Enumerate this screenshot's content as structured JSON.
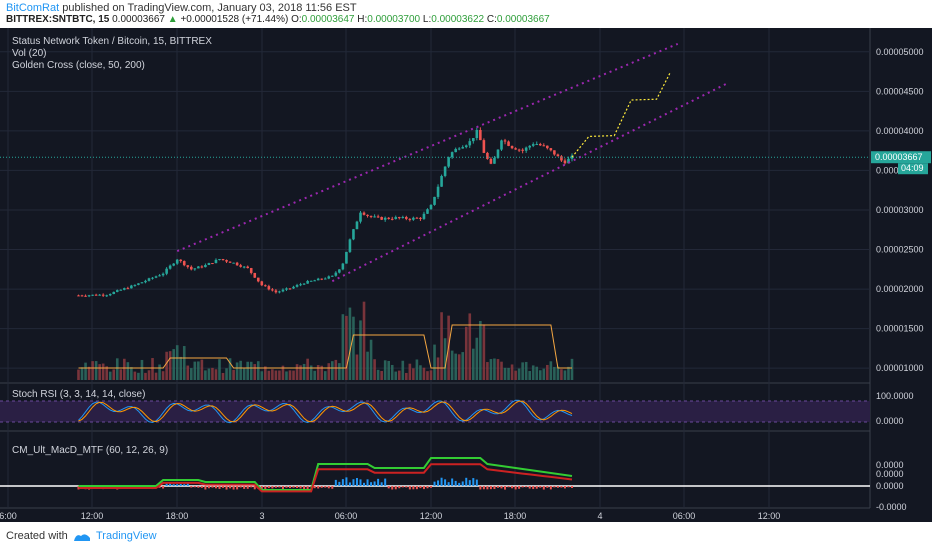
{
  "publish": {
    "author": "BitComRat",
    "text": " published on TradingView.com, January 03, 2018 11:56 EST",
    "symbol": "BITTREX:SNTBTC, 15",
    "price": "0.00003667",
    "change": "+0.00001528 (+71.44%)",
    "open_label": "O:",
    "open": "0.00003647",
    "high_label": "H:",
    "high": "0.00003700",
    "low_label": "L:",
    "low": "0.00003622",
    "close_label": "C:",
    "close": "0.00003667"
  },
  "panes": {
    "main_title": "Status Network Token / Bitcoin, 15, BITTREX",
    "vol_label": "Vol (20)",
    "ma_label": "Golden Cross (close, 50, 200)",
    "rsi_label": "Stoch RSI (3, 3, 14, 14, close)",
    "macd_label": "CM_Ult_MacD_MTF (60, 12, 26, 9)"
  },
  "axes": {
    "price_ticks": [
      "0.00005000",
      "0.00004500",
      "0.00004000",
      "0.000",
      "0.00003000",
      "0.00002500",
      "0.00002000",
      "0.00001500",
      "0.00001000"
    ],
    "last_price_tag": "0.00003667",
    "countdown_tag": "04:09",
    "rsi_ticks": [
      "100.0000",
      "0.0000"
    ],
    "macd_ticks": [
      "0.0000",
      "0.0000",
      "0.0000",
      "-0.0000"
    ],
    "time_ticks": [
      "6:00",
      "12:00",
      "18:00",
      "3",
      "06:00",
      "12:00",
      "18:00",
      "4",
      "06:00",
      "12:00"
    ]
  },
  "footer": {
    "created": "Created with",
    "brand": "TradingView"
  },
  "colors": {
    "background": "#131722",
    "up": "#26a69a",
    "down": "#ef5350",
    "channel": "#9c27b0",
    "forecast": "#ffeb3b",
    "ma": "#f5a742",
    "rsi_k": "#2196f3",
    "rsi_d": "#ff9800",
    "macd": "#33cc33",
    "macd_sig": "#cc2222"
  },
  "chart_data": {
    "type": "candlestick",
    "title": "Status Network Token / Bitcoin, 15, BITTREX",
    "ylim": [
      8.5e-06,
      5.25e-05
    ],
    "x_range": [
      5,
      42
    ],
    "x_unit": "hours since Jan 2 00:00 (2018)",
    "price_path": [
      [
        5,
        1.92e-05
      ],
      [
        7,
        1.93e-05
      ],
      [
        9,
        2.05e-05
      ],
      [
        11,
        2.2e-05
      ],
      [
        12,
        2.38e-05
      ],
      [
        13,
        2.25e-05
      ],
      [
        14,
        2.3e-05
      ],
      [
        15,
        2.38e-05
      ],
      [
        16,
        2.33e-05
      ],
      [
        17,
        2.26e-05
      ],
      [
        18,
        2.05e-05
      ],
      [
        19,
        1.96e-05
      ],
      [
        20,
        2.01e-05
      ],
      [
        21,
        2.08e-05
      ],
      [
        22,
        2.12e-05
      ],
      [
        23,
        2.16e-05
      ],
      [
        23.7,
        2.3e-05
      ],
      [
        24.3,
        2.65e-05
      ],
      [
        25,
        2.98e-05
      ],
      [
        25.6,
        2.92e-05
      ],
      [
        26.4,
        2.89e-05
      ],
      [
        27.5,
        2.9e-05
      ],
      [
        28.5,
        2.89e-05
      ],
      [
        29.3,
        2.9e-05
      ],
      [
        30,
        3.05e-05
      ],
      [
        30.7,
        3.4e-05
      ],
      [
        31.3,
        3.7e-05
      ],
      [
        32,
        3.8e-05
      ],
      [
        32.7,
        3.85e-05
      ],
      [
        33.3,
        4e-05
      ],
      [
        33.8,
        3.7e-05
      ],
      [
        34.3,
        3.55e-05
      ],
      [
        35,
        3.9e-05
      ],
      [
        35.7,
        3.8e-05
      ],
      [
        36.5,
        3.75e-05
      ],
      [
        37.3,
        3.85e-05
      ],
      [
        38,
        3.8e-05
      ],
      [
        38.7,
        3.72e-05
      ],
      [
        39.4,
        3.6e-05
      ],
      [
        40,
        3.667e-05
      ]
    ],
    "channel_upper": [
      [
        12,
        2.48e-05
      ],
      [
        47.5,
        5.1e-05
      ]
    ],
    "channel_lower": [
      [
        23,
        2.1e-05
      ],
      [
        51,
        4.6e-05
      ]
    ],
    "forecast_path": [
      [
        40,
        3.667e-05
      ],
      [
        41.2,
        3.93e-05
      ],
      [
        43,
        3.94e-05
      ],
      [
        44.2,
        4.39e-05
      ],
      [
        46,
        4.4e-05
      ],
      [
        47,
        4.75e-05
      ]
    ],
    "volume_max": 1.88e-05,
    "last_price": 3.667e-05
  }
}
